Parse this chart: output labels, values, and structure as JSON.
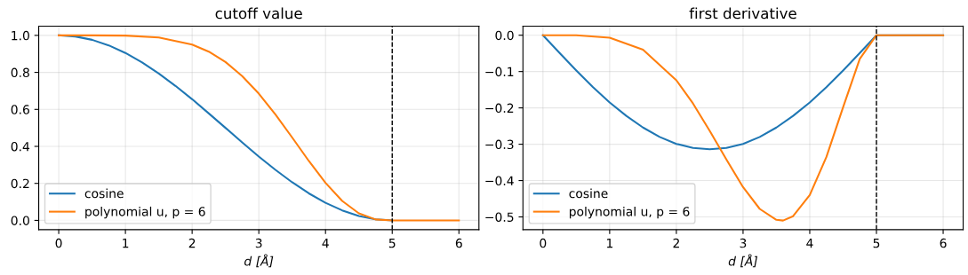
{
  "chart_data": [
    {
      "type": "line",
      "title": "cutoff value",
      "xlabel": "d [Å]",
      "xlim": [
        -0.3,
        6.3
      ],
      "xticks": [
        0,
        1,
        2,
        3,
        4,
        5,
        6
      ],
      "ylim": [
        -0.05,
        1.05
      ],
      "yticks": [
        {
          "value": 0,
          "label": "0.0"
        },
        {
          "value": 0.2,
          "label": "0.2"
        },
        {
          "value": 0.4,
          "label": "0.4"
        },
        {
          "value": 0.6,
          "label": "0.6"
        },
        {
          "value": 0.8,
          "label": "0.8"
        },
        {
          "value": 1,
          "label": "1.0"
        }
      ],
      "grid": true,
      "legend": "bottom left",
      "marker": "none",
      "line_style": "solid",
      "ref_lines": [
        {
          "axis": "x",
          "value": 5,
          "color": "#000000",
          "line_style": "dashed"
        }
      ],
      "series": [
        {
          "name": "cosine",
          "color": "#1f77b4",
          "x": [
            0,
            0.25,
            0.5,
            0.75,
            1,
            1.25,
            1.5,
            1.75,
            2,
            2.25,
            2.5,
            2.75,
            3,
            3.25,
            3.5,
            3.75,
            4,
            4.25,
            4.5,
            4.75,
            5
          ],
          "values": [
            1.0,
            0.994,
            0.976,
            0.946,
            0.905,
            0.854,
            0.794,
            0.727,
            0.655,
            0.578,
            0.5,
            0.422,
            0.345,
            0.273,
            0.206,
            0.146,
            0.095,
            0.054,
            0.024,
            0.006,
            0
          ]
        },
        {
          "name": "polynomial u, p = 6",
          "color": "#ff7f0e",
          "x": [
            0,
            0.5,
            1,
            1.5,
            2,
            2.25,
            2.5,
            2.75,
            3,
            3.25,
            3.5,
            3.75,
            4,
            4.25,
            4.5,
            4.75,
            5,
            5.5,
            6
          ],
          "values": [
            1.0,
            1.0,
            0.999,
            0.989,
            0.95,
            0.912,
            0.856,
            0.78,
            0.685,
            0.572,
            0.448,
            0.321,
            0.203,
            0.105,
            0.038,
            0.005,
            0,
            0,
            0
          ]
        }
      ]
    },
    {
      "type": "line",
      "title": "first derivative",
      "xlabel": "d [Å]",
      "xlim": [
        -0.3,
        6.3
      ],
      "xticks": [
        0,
        1,
        2,
        3,
        4,
        5,
        6
      ],
      "ylim": [
        -0.535,
        0.025
      ],
      "yticks": [
        {
          "value": -0.5,
          "label": "−0.5"
        },
        {
          "value": -0.4,
          "label": "−0.4"
        },
        {
          "value": -0.3,
          "label": "−0.3"
        },
        {
          "value": -0.2,
          "label": "−0.2"
        },
        {
          "value": -0.1,
          "label": "−0.1"
        },
        {
          "value": 0,
          "label": "0.0"
        }
      ],
      "grid": true,
      "legend": "bottom left",
      "marker": "none",
      "line_style": "solid",
      "ref_lines": [
        {
          "axis": "x",
          "value": 5,
          "color": "#000000",
          "line_style": "dashed"
        }
      ],
      "series": [
        {
          "name": "cosine",
          "color": "#1f77b4",
          "x": [
            0,
            0.25,
            0.5,
            0.75,
            1,
            1.25,
            1.5,
            1.75,
            2,
            2.25,
            2.5,
            2.75,
            3,
            3.25,
            3.5,
            3.75,
            4,
            4.25,
            4.5,
            4.75,
            5,
            5.5,
            6
          ],
          "values": [
            0,
            -0.049,
            -0.097,
            -0.143,
            -0.185,
            -0.222,
            -0.254,
            -0.28,
            -0.299,
            -0.31,
            -0.314,
            -0.31,
            -0.299,
            -0.28,
            -0.254,
            -0.222,
            -0.185,
            -0.143,
            -0.097,
            -0.049,
            0,
            0,
            0
          ]
        },
        {
          "name": "polynomial u, p = 6",
          "color": "#ff7f0e",
          "x": [
            0,
            0.5,
            1,
            1.5,
            2,
            2.25,
            2.5,
            2.75,
            3,
            3.25,
            3.5,
            3.6,
            3.75,
            4,
            4.25,
            4.5,
            4.75,
            5,
            5.5,
            6
          ],
          "values": [
            0,
            0,
            -0.007,
            -0.04,
            -0.124,
            -0.188,
            -0.263,
            -0.342,
            -0.418,
            -0.478,
            -0.508,
            -0.51,
            -0.498,
            -0.44,
            -0.335,
            -0.198,
            -0.065,
            0,
            0,
            0
          ]
        }
      ]
    }
  ]
}
